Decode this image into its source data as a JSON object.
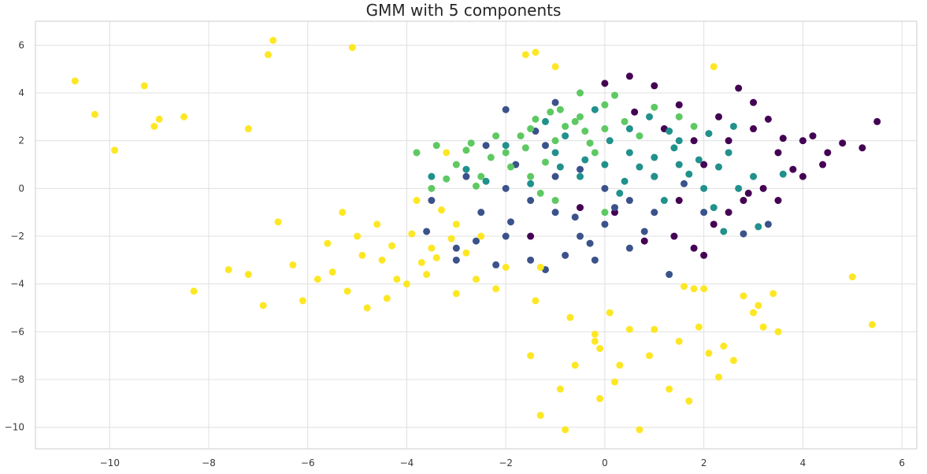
{
  "chart_data": {
    "type": "scatter",
    "title": "GMM with 5 components",
    "xlabel": "",
    "ylabel": "",
    "xlim": [
      -11.5,
      6.3
    ],
    "ylim": [
      -10.9,
      7.0
    ],
    "xticks": [
      -10,
      -8,
      -6,
      -4,
      -2,
      0,
      2,
      4,
      6
    ],
    "xtick_labels": [
      "−10",
      "−8",
      "−6",
      "−4",
      "−2",
      "0",
      "2",
      "4",
      "6"
    ],
    "yticks": [
      -10,
      -8,
      -6,
      -4,
      -2,
      0,
      2,
      4,
      6
    ],
    "ytick_labels": [
      "−10",
      "−8",
      "−6",
      "−4",
      "−2",
      "0",
      "2",
      "4",
      "6"
    ],
    "grid": true,
    "legend": "none",
    "point_colors": [
      "#440154",
      "#3b528b",
      "#21918c",
      "#5ec962",
      "#fde725"
    ],
    "series": [
      {
        "values": [
          [
            2.5,
            2.0
          ],
          [
            3.0,
            2.5
          ],
          [
            3.5,
            1.5
          ],
          [
            4.0,
            2.0
          ],
          [
            4.5,
            1.5
          ],
          [
            5.5,
            2.8
          ],
          [
            5.2,
            1.7
          ],
          [
            4.2,
            2.2
          ],
          [
            3.8,
            0.8
          ],
          [
            3.2,
            0.0
          ],
          [
            2.8,
            -0.5
          ],
          [
            2.2,
            -1.5
          ],
          [
            1.8,
            -2.5
          ],
          [
            2.0,
            -2.8
          ],
          [
            0.8,
            -2.2
          ],
          [
            0.2,
            -1.0
          ],
          [
            1.0,
            4.3
          ],
          [
            0.5,
            4.7
          ],
          [
            0.0,
            4.4
          ],
          [
            2.7,
            4.2
          ],
          [
            3.0,
            3.6
          ],
          [
            2.3,
            3.0
          ],
          [
            1.5,
            3.5
          ],
          [
            1.2,
            2.5
          ],
          [
            3.5,
            -0.5
          ],
          [
            4.0,
            0.5
          ],
          [
            2.5,
            -1.0
          ],
          [
            1.5,
            -0.5
          ],
          [
            1.0,
            0.5
          ],
          [
            3.3,
            2.9
          ],
          [
            4.4,
            1.0
          ],
          [
            2.0,
            1.0
          ],
          [
            0.6,
            3.2
          ],
          [
            1.8,
            2.0
          ],
          [
            2.9,
            -0.2
          ],
          [
            -0.5,
            -0.8
          ],
          [
            -1.5,
            -2.0
          ],
          [
            3.6,
            2.1
          ],
          [
            4.8,
            1.9
          ],
          [
            1.4,
            -2.0
          ]
        ]
      },
      {
        "values": [
          [
            -1.0,
            -1.0
          ],
          [
            -0.5,
            -2.0
          ],
          [
            0.0,
            -1.5
          ],
          [
            0.5,
            -2.5
          ],
          [
            -2.0,
            -2.0
          ],
          [
            -1.5,
            -3.0
          ],
          [
            -3.0,
            -2.5
          ],
          [
            -2.5,
            -1.0
          ],
          [
            0.0,
            0.0
          ],
          [
            0.5,
            -0.5
          ],
          [
            1.0,
            -1.0
          ],
          [
            -1.0,
            0.5
          ],
          [
            -2.0,
            0.0
          ],
          [
            -3.5,
            -0.5
          ],
          [
            -3.0,
            -3.0
          ],
          [
            -2.2,
            -3.2
          ],
          [
            -1.2,
            -3.4
          ],
          [
            -0.8,
            -2.8
          ],
          [
            -2.0,
            3.3
          ],
          [
            -1.0,
            3.6
          ],
          [
            3.3,
            -1.5
          ],
          [
            2.8,
            -1.9
          ],
          [
            1.3,
            -3.6
          ],
          [
            -0.2,
            -3.0
          ],
          [
            -1.8,
            1.0
          ],
          [
            -0.5,
            0.8
          ],
          [
            0.2,
            -0.8
          ],
          [
            -1.5,
            -0.5
          ],
          [
            -2.8,
            0.5
          ],
          [
            -3.6,
            -1.8
          ],
          [
            -1.2,
            1.8
          ],
          [
            0.8,
            -1.8
          ],
          [
            2.0,
            -1.0
          ],
          [
            -0.6,
            -1.2
          ],
          [
            1.6,
            0.2
          ],
          [
            -2.6,
            -2.2
          ],
          [
            -1.9,
            -1.4
          ],
          [
            -0.3,
            -2.3
          ],
          [
            -1.4,
            2.4
          ],
          [
            -2.4,
            1.8
          ]
        ]
      },
      {
        "values": [
          [
            0.0,
            1.0
          ],
          [
            0.5,
            1.5
          ],
          [
            1.0,
            0.5
          ],
          [
            1.5,
            1.0
          ],
          [
            2.0,
            0.0
          ],
          [
            -0.5,
            0.5
          ],
          [
            -1.0,
            1.5
          ],
          [
            0.5,
            2.5
          ],
          [
            1.5,
            2.0
          ],
          [
            2.5,
            1.5
          ],
          [
            3.0,
            0.5
          ],
          [
            2.2,
            -0.8
          ],
          [
            -0.2,
            3.3
          ],
          [
            0.9,
            3.0
          ],
          [
            -2.0,
            1.8
          ],
          [
            -2.8,
            0.8
          ],
          [
            -3.5,
            0.5
          ],
          [
            2.4,
            -1.8
          ],
          [
            3.1,
            -1.6
          ],
          [
            0.3,
            -0.2
          ],
          [
            1.2,
            -0.5
          ],
          [
            1.9,
            1.2
          ],
          [
            -0.8,
            2.2
          ],
          [
            0.7,
            0.9
          ],
          [
            1.4,
            1.7
          ],
          [
            2.1,
            2.3
          ],
          [
            -1.5,
            0.2
          ],
          [
            2.7,
            0.0
          ],
          [
            3.6,
            0.6
          ],
          [
            0.1,
            2.0
          ],
          [
            -0.4,
            1.2
          ],
          [
            1.7,
            0.6
          ],
          [
            1.0,
            1.3
          ],
          [
            -1.2,
            2.8
          ],
          [
            2.6,
            2.6
          ],
          [
            -2.4,
            0.3
          ],
          [
            0.4,
            0.3
          ],
          [
            1.3,
            2.4
          ],
          [
            -0.9,
            0.9
          ],
          [
            2.3,
            0.9
          ]
        ]
      },
      {
        "values": [
          [
            -1.0,
            2.0
          ],
          [
            -0.5,
            3.0
          ],
          [
            0.0,
            2.5
          ],
          [
            -1.5,
            2.5
          ],
          [
            -2.0,
            1.5
          ],
          [
            -3.0,
            1.0
          ],
          [
            -3.5,
            0.0
          ],
          [
            -2.5,
            0.5
          ],
          [
            -1.5,
            0.5
          ],
          [
            -1.0,
            -0.5
          ],
          [
            0.0,
            -1.0
          ],
          [
            -0.5,
            4.0
          ],
          [
            0.0,
            3.5
          ],
          [
            1.5,
            3.0
          ],
          [
            -1.2,
            1.1
          ],
          [
            -0.2,
            1.5
          ],
          [
            0.4,
            2.8
          ],
          [
            -2.2,
            2.2
          ],
          [
            -2.8,
            1.6
          ],
          [
            -1.6,
            1.7
          ],
          [
            -0.8,
            2.6
          ],
          [
            -0.3,
            1.9
          ],
          [
            0.7,
            2.2
          ],
          [
            -1.9,
            0.9
          ],
          [
            -2.6,
            0.1
          ],
          [
            -3.2,
            0.4
          ],
          [
            0.2,
            3.9
          ],
          [
            -1.1,
            3.2
          ],
          [
            -0.6,
            2.8
          ],
          [
            -1.4,
            2.9
          ],
          [
            -2.3,
            1.3
          ],
          [
            -1.7,
            2.2
          ],
          [
            -0.9,
            3.3
          ],
          [
            -3.8,
            1.5
          ],
          [
            -3.4,
            1.8
          ],
          [
            1.0,
            3.4
          ],
          [
            1.8,
            2.6
          ],
          [
            -1.3,
            -0.2
          ],
          [
            -2.7,
            1.9
          ],
          [
            -0.4,
            2.4
          ]
        ]
      },
      {
        "values": [
          [
            -10.7,
            4.5
          ],
          [
            -10.3,
            3.1
          ],
          [
            -9.9,
            1.6
          ],
          [
            -9.3,
            4.3
          ],
          [
            -9.0,
            2.9
          ],
          [
            -9.1,
            2.6
          ],
          [
            -8.5,
            3.0
          ],
          [
            -7.2,
            2.5
          ],
          [
            -6.8,
            5.6
          ],
          [
            -6.7,
            6.2
          ],
          [
            -5.1,
            5.9
          ],
          [
            -1.6,
            5.6
          ],
          [
            -1.4,
            5.7
          ],
          [
            -1.0,
            5.1
          ],
          [
            2.2,
            5.1
          ],
          [
            -8.3,
            -4.3
          ],
          [
            -7.6,
            -3.4
          ],
          [
            -7.2,
            -3.6
          ],
          [
            -6.9,
            -4.9
          ],
          [
            -6.6,
            -1.4
          ],
          [
            -6.1,
            -4.7
          ],
          [
            -5.5,
            -3.5
          ],
          [
            -5.0,
            -2.0
          ],
          [
            -4.5,
            -3.0
          ],
          [
            -4.0,
            -4.0
          ],
          [
            -3.5,
            -2.5
          ],
          [
            -3.0,
            -1.5
          ],
          [
            -2.5,
            -2.0
          ],
          [
            -4.8,
            -5.0
          ],
          [
            -4.2,
            -3.8
          ],
          [
            -3.8,
            -0.5
          ],
          [
            -3.2,
            1.5
          ],
          [
            -5.8,
            -3.8
          ],
          [
            -6.3,
            -3.2
          ],
          [
            -5.3,
            -1.0
          ],
          [
            -5.6,
            -2.3
          ],
          [
            -4.6,
            -1.5
          ],
          [
            -3.6,
            -3.6
          ],
          [
            -3.0,
            -4.4
          ],
          [
            -2.2,
            -4.2
          ],
          [
            -1.3,
            -3.3
          ],
          [
            -1.4,
            -4.7
          ],
          [
            -1.5,
            -7.0
          ],
          [
            -1.3,
            -9.5
          ],
          [
            -0.9,
            -8.4
          ],
          [
            -0.7,
            -5.4
          ],
          [
            -0.6,
            -7.4
          ],
          [
            -0.8,
            -10.1
          ],
          [
            -0.2,
            -6.4
          ],
          [
            -0.1,
            -6.7
          ],
          [
            0.1,
            -5.2
          ],
          [
            0.2,
            -8.1
          ],
          [
            0.3,
            -7.4
          ],
          [
            0.5,
            -5.9
          ],
          [
            0.7,
            -10.1
          ],
          [
            0.9,
            -7.0
          ],
          [
            1.0,
            -5.9
          ],
          [
            1.3,
            -8.4
          ],
          [
            1.5,
            -6.4
          ],
          [
            1.7,
            -8.9
          ],
          [
            1.9,
            -5.8
          ],
          [
            2.1,
            -6.9
          ],
          [
            2.3,
            -7.9
          ],
          [
            2.6,
            -7.2
          ],
          [
            2.8,
            -4.5
          ],
          [
            3.0,
            -5.2
          ],
          [
            3.2,
            -5.8
          ],
          [
            3.4,
            -4.4
          ],
          [
            3.5,
            -6.0
          ],
          [
            2.0,
            -4.2
          ],
          [
            1.8,
            -4.2
          ],
          [
            5.0,
            -3.7
          ],
          [
            5.4,
            -5.7
          ],
          [
            -0.1,
            -8.8
          ],
          [
            -0.2,
            -6.1
          ],
          [
            1.6,
            -4.1
          ],
          [
            2.4,
            -6.6
          ],
          [
            3.1,
            -4.9
          ],
          [
            -4.9,
            -2.8
          ],
          [
            -4.3,
            -2.4
          ],
          [
            -3.4,
            -2.9
          ],
          [
            -2.8,
            -2.7
          ],
          [
            -3.9,
            -1.9
          ],
          [
            -5.2,
            -4.3
          ],
          [
            -2.0,
            -3.3
          ],
          [
            -3.3,
            -0.9
          ],
          [
            -4.4,
            -4.6
          ],
          [
            -2.6,
            -3.8
          ],
          [
            -3.1,
            -2.1
          ],
          [
            -3.7,
            -3.1
          ]
        ]
      }
    ]
  }
}
